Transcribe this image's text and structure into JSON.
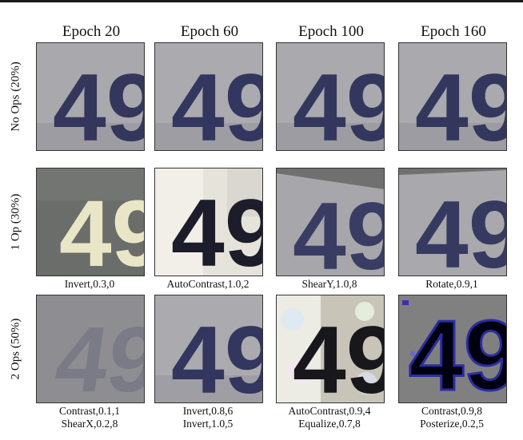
{
  "figure": {
    "columns": [
      "Epoch 20",
      "Epoch 60",
      "Epoch 100",
      "Epoch 160"
    ],
    "rows": [
      {
        "label": "No Ops (20%)",
        "cells": [
          {
            "digits": "49",
            "style": "plain",
            "captions": []
          },
          {
            "digits": "49",
            "style": "plain",
            "captions": []
          },
          {
            "digits": "49",
            "style": "plain",
            "captions": []
          },
          {
            "digits": "49",
            "style": "plain",
            "captions": []
          }
        ]
      },
      {
        "label": "1 Op (30%)",
        "cells": [
          {
            "digits": "49",
            "style": "invert",
            "captions": [
              "Invert,0.3,0"
            ]
          },
          {
            "digits": "49",
            "style": "autocontrast",
            "captions": [
              "AutoContrast,1.0,2"
            ]
          },
          {
            "digits": "49",
            "style": "sheary",
            "captions": [
              "ShearY,1.0,8"
            ]
          },
          {
            "digits": "49",
            "style": "rotate",
            "captions": [
              "Rotate,0.9,1"
            ]
          }
        ]
      },
      {
        "label": "2 Ops (50%)",
        "cells": [
          {
            "digits": "49",
            "style": "lowcontrast",
            "captions": [
              "Contrast,0.1,1",
              "ShearX,0.2,8"
            ]
          },
          {
            "digits": "49",
            "style": "plain",
            "captions": [
              "Invert,0.8,6",
              "Invert,1.0,5"
            ]
          },
          {
            "digits": "49",
            "style": "equalize",
            "captions": [
              "AutoContrast,0.9,4",
              "Equalize,0.7,8"
            ]
          },
          {
            "digits": "49",
            "style": "posterize",
            "captions": [
              "Contrast,0.9,8",
              "Posterize,0.2,5"
            ]
          }
        ]
      }
    ]
  }
}
